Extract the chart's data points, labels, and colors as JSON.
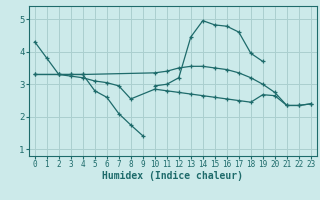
{
  "xlabel": "Humidex (Indice chaleur)",
  "bg_color": "#cceaea",
  "grid_color": "#aacfcf",
  "line_color": "#1e6b6b",
  "xlim": [
    -0.5,
    23.5
  ],
  "ylim": [
    0.8,
    5.4
  ],
  "xticks": [
    0,
    1,
    2,
    3,
    4,
    5,
    6,
    7,
    8,
    9,
    10,
    11,
    12,
    13,
    14,
    15,
    16,
    17,
    18,
    19,
    20,
    21,
    22,
    23
  ],
  "yticks": [
    1,
    2,
    3,
    4,
    5
  ],
  "lines": [
    {
      "x": [
        0,
        1,
        2,
        3,
        4,
        5,
        6,
        7,
        8,
        9
      ],
      "y": [
        4.3,
        3.8,
        3.3,
        3.3,
        3.3,
        2.8,
        2.6,
        2.1,
        1.75,
        1.42
      ]
    },
    {
      "x": [
        10,
        11,
        12,
        13,
        14,
        15,
        16,
        17,
        18,
        19
      ],
      "y": [
        2.95,
        3.0,
        3.2,
        4.45,
        4.95,
        4.82,
        4.78,
        4.6,
        3.95,
        3.7
      ]
    },
    {
      "x": [
        0,
        2,
        3,
        4,
        10,
        11,
        12,
        13,
        14,
        15,
        16,
        17,
        18,
        19,
        20,
        21,
        22,
        23
      ],
      "y": [
        3.3,
        3.3,
        3.3,
        3.3,
        3.35,
        3.4,
        3.5,
        3.55,
        3.55,
        3.5,
        3.45,
        3.35,
        3.2,
        3.0,
        2.75,
        2.35,
        2.35,
        2.4
      ]
    },
    {
      "x": [
        0,
        2,
        3,
        4,
        5,
        6,
        7,
        8,
        10,
        11,
        12,
        13,
        14,
        15,
        16,
        17,
        18,
        19,
        20,
        21,
        22,
        23
      ],
      "y": [
        3.3,
        3.3,
        3.25,
        3.2,
        3.1,
        3.05,
        2.95,
        2.55,
        2.85,
        2.8,
        2.75,
        2.7,
        2.65,
        2.6,
        2.55,
        2.5,
        2.45,
        2.68,
        2.65,
        2.35,
        2.35,
        2.4
      ]
    }
  ]
}
